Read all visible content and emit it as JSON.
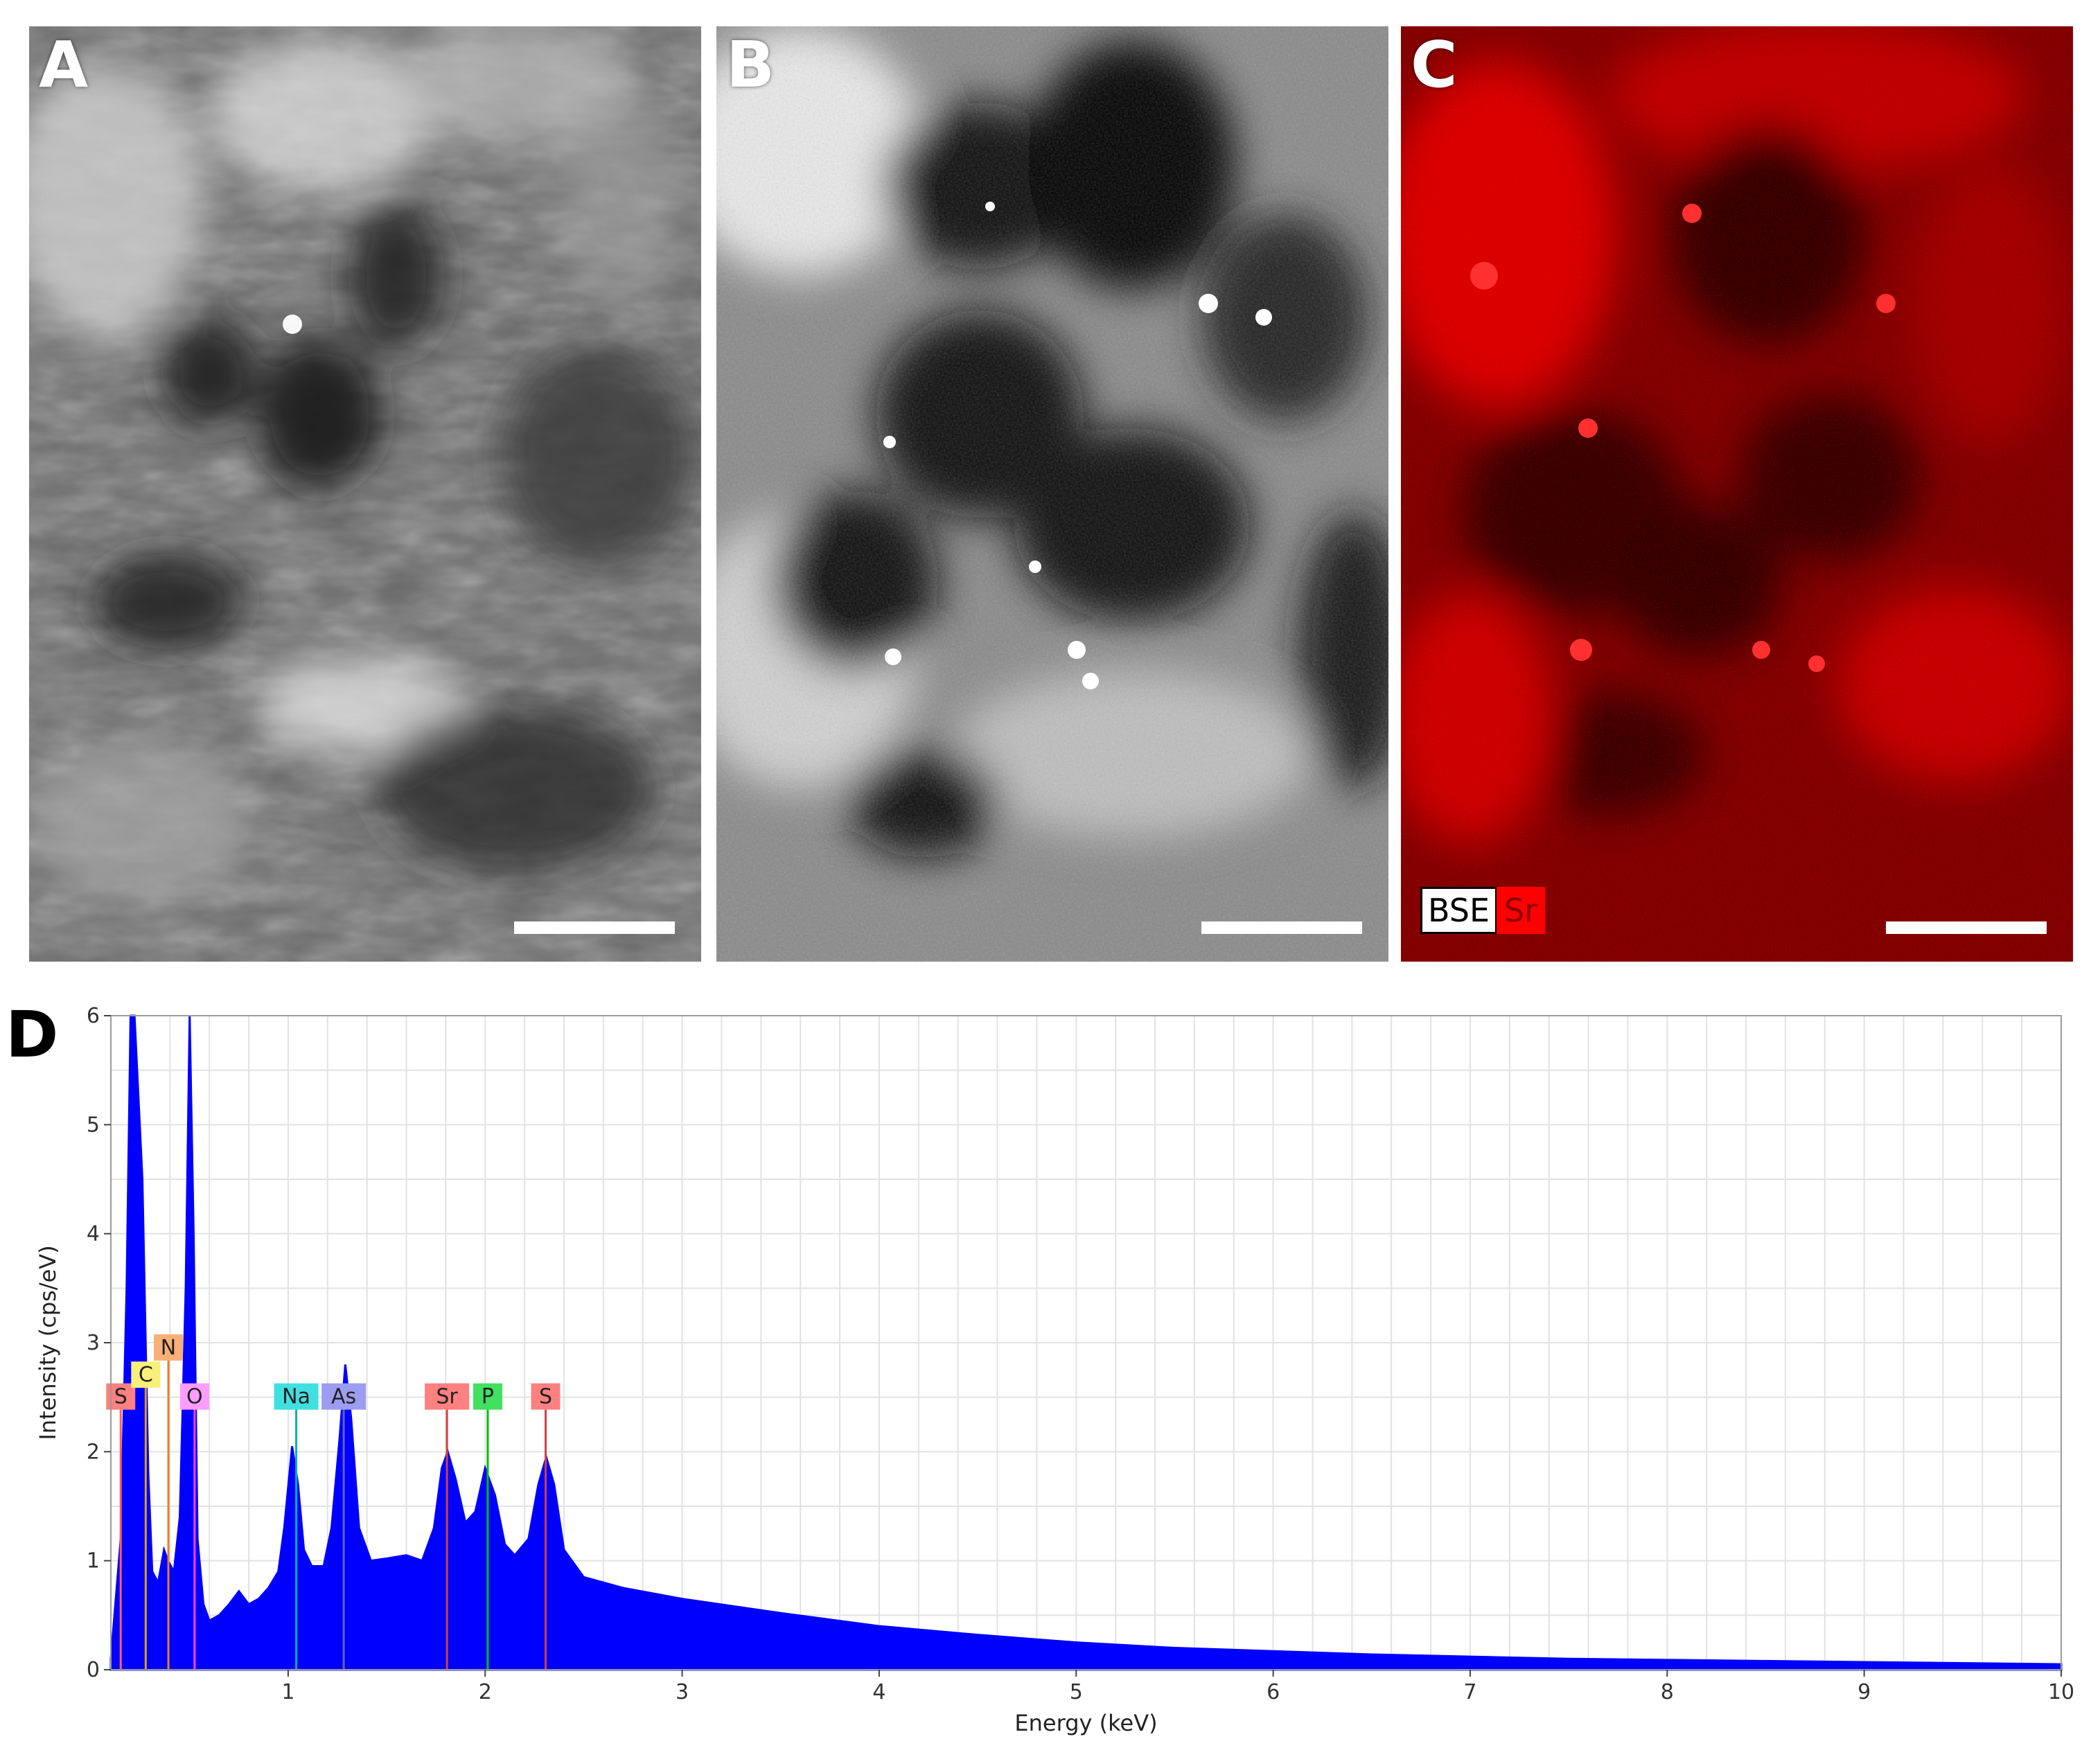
{
  "panels": {
    "a": {
      "letter": "A"
    },
    "b": {
      "letter": "B"
    },
    "c": {
      "letter": "C",
      "legend": {
        "bse": "BSE",
        "sr": "Sr"
      }
    }
  },
  "colors": {
    "spectrum": "#0000ff",
    "map": "#ff0000"
  },
  "chart_data": {
    "type": "area",
    "panel_letter": "D",
    "title": "",
    "xlabel": "Energy (keV)",
    "ylabel": "Intensity (cps/eV)",
    "xlim": [
      0.1,
      10
    ],
    "ylim": [
      0,
      6
    ],
    "x_ticks": [
      1,
      2,
      3,
      4,
      5,
      6,
      7,
      8,
      9,
      10
    ],
    "y_ticks": [
      0,
      1,
      2,
      3,
      4,
      5,
      6
    ],
    "grid": true,
    "series": [
      {
        "color": "#0000ff",
        "x": [
          0.1,
          0.15,
          0.18,
          0.2,
          0.22,
          0.26,
          0.29,
          0.31,
          0.34,
          0.37,
          0.39,
          0.42,
          0.45,
          0.48,
          0.5,
          0.52,
          0.54,
          0.57,
          0.6,
          0.65,
          0.7,
          0.75,
          0.8,
          0.85,
          0.9,
          0.95,
          0.98,
          1.02,
          1.05,
          1.08,
          1.12,
          1.18,
          1.22,
          1.26,
          1.29,
          1.32,
          1.36,
          1.42,
          1.5,
          1.6,
          1.68,
          1.74,
          1.78,
          1.81,
          1.85,
          1.9,
          1.95,
          2.0,
          2.05,
          2.1,
          2.15,
          2.22,
          2.27,
          2.31,
          2.35,
          2.4,
          2.5,
          2.7,
          3.0,
          3.5,
          4.0,
          4.5,
          5.0,
          5.5,
          6.0,
          6.5,
          7.0,
          7.5,
          8.0,
          8.5,
          9.0,
          9.5,
          10.0
        ],
        "y": [
          0.1,
          1.2,
          3.5,
          6.0,
          6.0,
          4.5,
          1.8,
          0.9,
          0.8,
          1.1,
          1.0,
          0.9,
          1.4,
          3.5,
          6.0,
          4.0,
          1.2,
          0.6,
          0.45,
          0.5,
          0.6,
          0.72,
          0.6,
          0.65,
          0.75,
          0.9,
          1.3,
          2.05,
          1.7,
          1.1,
          0.95,
          0.95,
          1.3,
          2.1,
          2.8,
          2.3,
          1.3,
          1.0,
          1.02,
          1.05,
          1.0,
          1.3,
          1.85,
          2.0,
          1.75,
          1.35,
          1.45,
          1.85,
          1.6,
          1.15,
          1.05,
          1.2,
          1.7,
          1.95,
          1.7,
          1.1,
          0.85,
          0.75,
          0.65,
          0.52,
          0.4,
          0.32,
          0.25,
          0.2,
          0.17,
          0.14,
          0.12,
          0.1,
          0.09,
          0.08,
          0.07,
          0.06,
          0.05
        ]
      }
    ],
    "element_markers": [
      {
        "label": "S",
        "x": 0.15,
        "label_y": 2.5,
        "line_color": "#ff6060",
        "box_color": "#ff8080"
      },
      {
        "label": "C",
        "x": 0.277,
        "label_y": 2.7,
        "line_color": "#e0a000",
        "box_color": "#f8f07a"
      },
      {
        "label": "N",
        "x": 0.392,
        "label_y": 2.95,
        "line_color": "#e08030",
        "box_color": "#f8b078"
      },
      {
        "label": "O",
        "x": 0.525,
        "label_y": 2.5,
        "line_color": "#ff40ff",
        "box_color": "#ff9cff"
      },
      {
        "label": "Na",
        "x": 1.041,
        "label_y": 2.5,
        "line_color": "#00b0b0",
        "box_color": "#40e0e0"
      },
      {
        "label": "As",
        "x": 1.282,
        "label_y": 2.5,
        "line_color": "#6060c0",
        "box_color": "#9c9cf0"
      },
      {
        "label": "Sr",
        "x": 1.806,
        "label_y": 2.5,
        "line_color": "#d04040",
        "box_color": "#ff8080"
      },
      {
        "label": "P",
        "x": 2.013,
        "label_y": 2.5,
        "line_color": "#00c000",
        "box_color": "#40e060"
      },
      {
        "label": "S",
        "x": 2.307,
        "label_y": 2.5,
        "line_color": "#d04040",
        "box_color": "#ff8080"
      }
    ]
  }
}
